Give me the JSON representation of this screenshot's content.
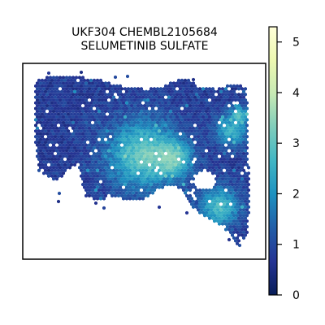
{
  "chart_data": {
    "type": "heatmap",
    "title_lines": [
      "UKF304 CHEMBL2105684",
      "SELUMETINIB SULFATE"
    ],
    "colorbar": {
      "min": 0,
      "max": 5.3,
      "ticks": [
        0,
        1,
        2,
        3,
        4,
        5
      ],
      "tick_labels": [
        "0",
        "1",
        "2",
        "3",
        "4",
        "5"
      ],
      "colormap": [
        "#081d58",
        "#253494",
        "#225ea8",
        "#1d91c0",
        "#41b6c4",
        "#7fcdbb",
        "#c7e9b4",
        "#edf8b1",
        "#ffffd9"
      ]
    },
    "spots": {
      "marker": "hexagon",
      "value_range": [
        0,
        3.5
      ],
      "typical_value": 0.8
    },
    "grid": false,
    "frame": true
  }
}
